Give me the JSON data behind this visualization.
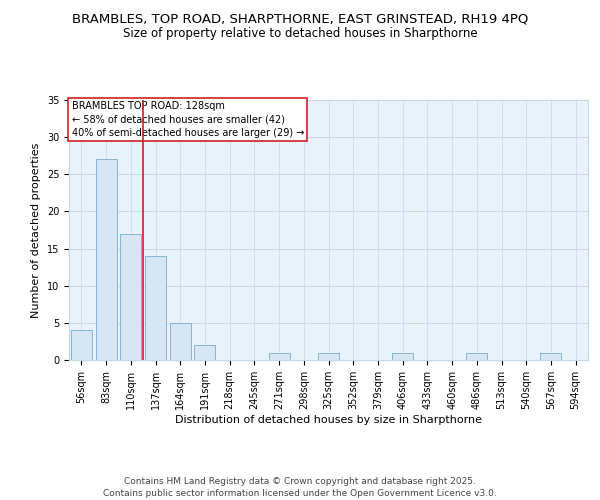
{
  "title_line1": "BRAMBLES, TOP ROAD, SHARPTHORNE, EAST GRINSTEAD, RH19 4PQ",
  "title_line2": "Size of property relative to detached houses in Sharpthorne",
  "xlabel": "Distribution of detached houses by size in Sharpthorne",
  "ylabel": "Number of detached properties",
  "categories": [
    "56sqm",
    "83sqm",
    "110sqm",
    "137sqm",
    "164sqm",
    "191sqm",
    "218sqm",
    "245sqm",
    "271sqm",
    "298sqm",
    "325sqm",
    "352sqm",
    "379sqm",
    "406sqm",
    "433sqm",
    "460sqm",
    "486sqm",
    "513sqm",
    "540sqm",
    "567sqm",
    "594sqm"
  ],
  "values": [
    4,
    27,
    17,
    14,
    5,
    2,
    0,
    0,
    1,
    0,
    1,
    0,
    0,
    1,
    0,
    0,
    1,
    0,
    0,
    1,
    0
  ],
  "bar_color": "#d6e6f5",
  "bar_edge_color": "#7aaec8",
  "grid_color": "#c5d8ea",
  "background_color": "#e8f2fa",
  "vline_color": "#cc2222",
  "annotation_text": "BRAMBLES TOP ROAD: 128sqm\n← 58% of detached houses are smaller (42)\n40% of semi-detached houses are larger (29) →",
  "annotation_box_facecolor": "#ffffff",
  "annotation_box_edgecolor": "#cc2222",
  "ylim": [
    0,
    35
  ],
  "yticks": [
    0,
    5,
    10,
    15,
    20,
    25,
    30,
    35
  ],
  "footer_text": "Contains HM Land Registry data © Crown copyright and database right 2025.\nContains public sector information licensed under the Open Government Licence v3.0.",
  "title_fontsize": 9.5,
  "subtitle_fontsize": 8.5,
  "axis_label_fontsize": 8,
  "tick_fontsize": 7,
  "annotation_fontsize": 7,
  "footer_fontsize": 6.5
}
